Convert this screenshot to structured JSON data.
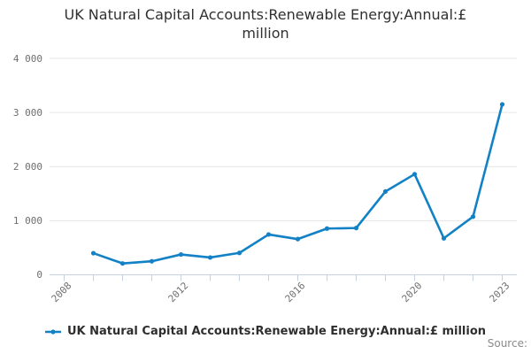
{
  "title": {
    "text": "UK Natural Capital Accounts:Renewable Energy:Annual:£ million"
  },
  "legend": {
    "label": "UK Natural Capital Accounts:Renewable Energy:Annual:£ million",
    "marker_icon": "line-with-dot"
  },
  "source": {
    "label": "Source:"
  },
  "colors": {
    "line": "#1281c5",
    "grid": "#e6e6e6",
    "axis": "#c6d1e0",
    "tick_text": "#6e6e6e",
    "title_text": "#303030",
    "legend_text": "#2e2e2e",
    "source_text": "#8a8a8a",
    "background": "#ffffff"
  },
  "chart_data": {
    "type": "line",
    "title": "UK Natural Capital Accounts:Renewable Energy:Annual:£ million",
    "x": [
      2009,
      2010,
      2011,
      2012,
      2013,
      2014,
      2015,
      2016,
      2017,
      2018,
      2019,
      2020,
      2021,
      2022,
      2023
    ],
    "series": [
      {
        "name": "UK Natural Capital Accounts:Renewable Energy:Annual:£ million",
        "values": [
          400,
          210,
          250,
          375,
          320,
          405,
          745,
          660,
          855,
          865,
          1540,
          1860,
          675,
          1075,
          3150
        ]
      }
    ],
    "x_axis": {
      "categories": [
        "2008",
        "2009",
        "2010",
        "2011",
        "2012",
        "2013",
        "2014",
        "2015",
        "2016",
        "2017",
        "2018",
        "2019",
        "2020",
        "2021",
        "2022",
        "2023"
      ],
      "labeled_ticks": [
        "2008",
        "2012",
        "2016",
        "2020",
        "2023"
      ]
    },
    "y_axis": {
      "range": [
        0,
        4000
      ],
      "ticks": [
        0,
        1000,
        2000,
        3000,
        4000
      ],
      "tick_labels": [
        "0",
        "1 000",
        "2 000",
        "3 000",
        "4 000"
      ]
    },
    "grid": "horizontal",
    "legend_position": "bottom",
    "marker": "circle"
  }
}
